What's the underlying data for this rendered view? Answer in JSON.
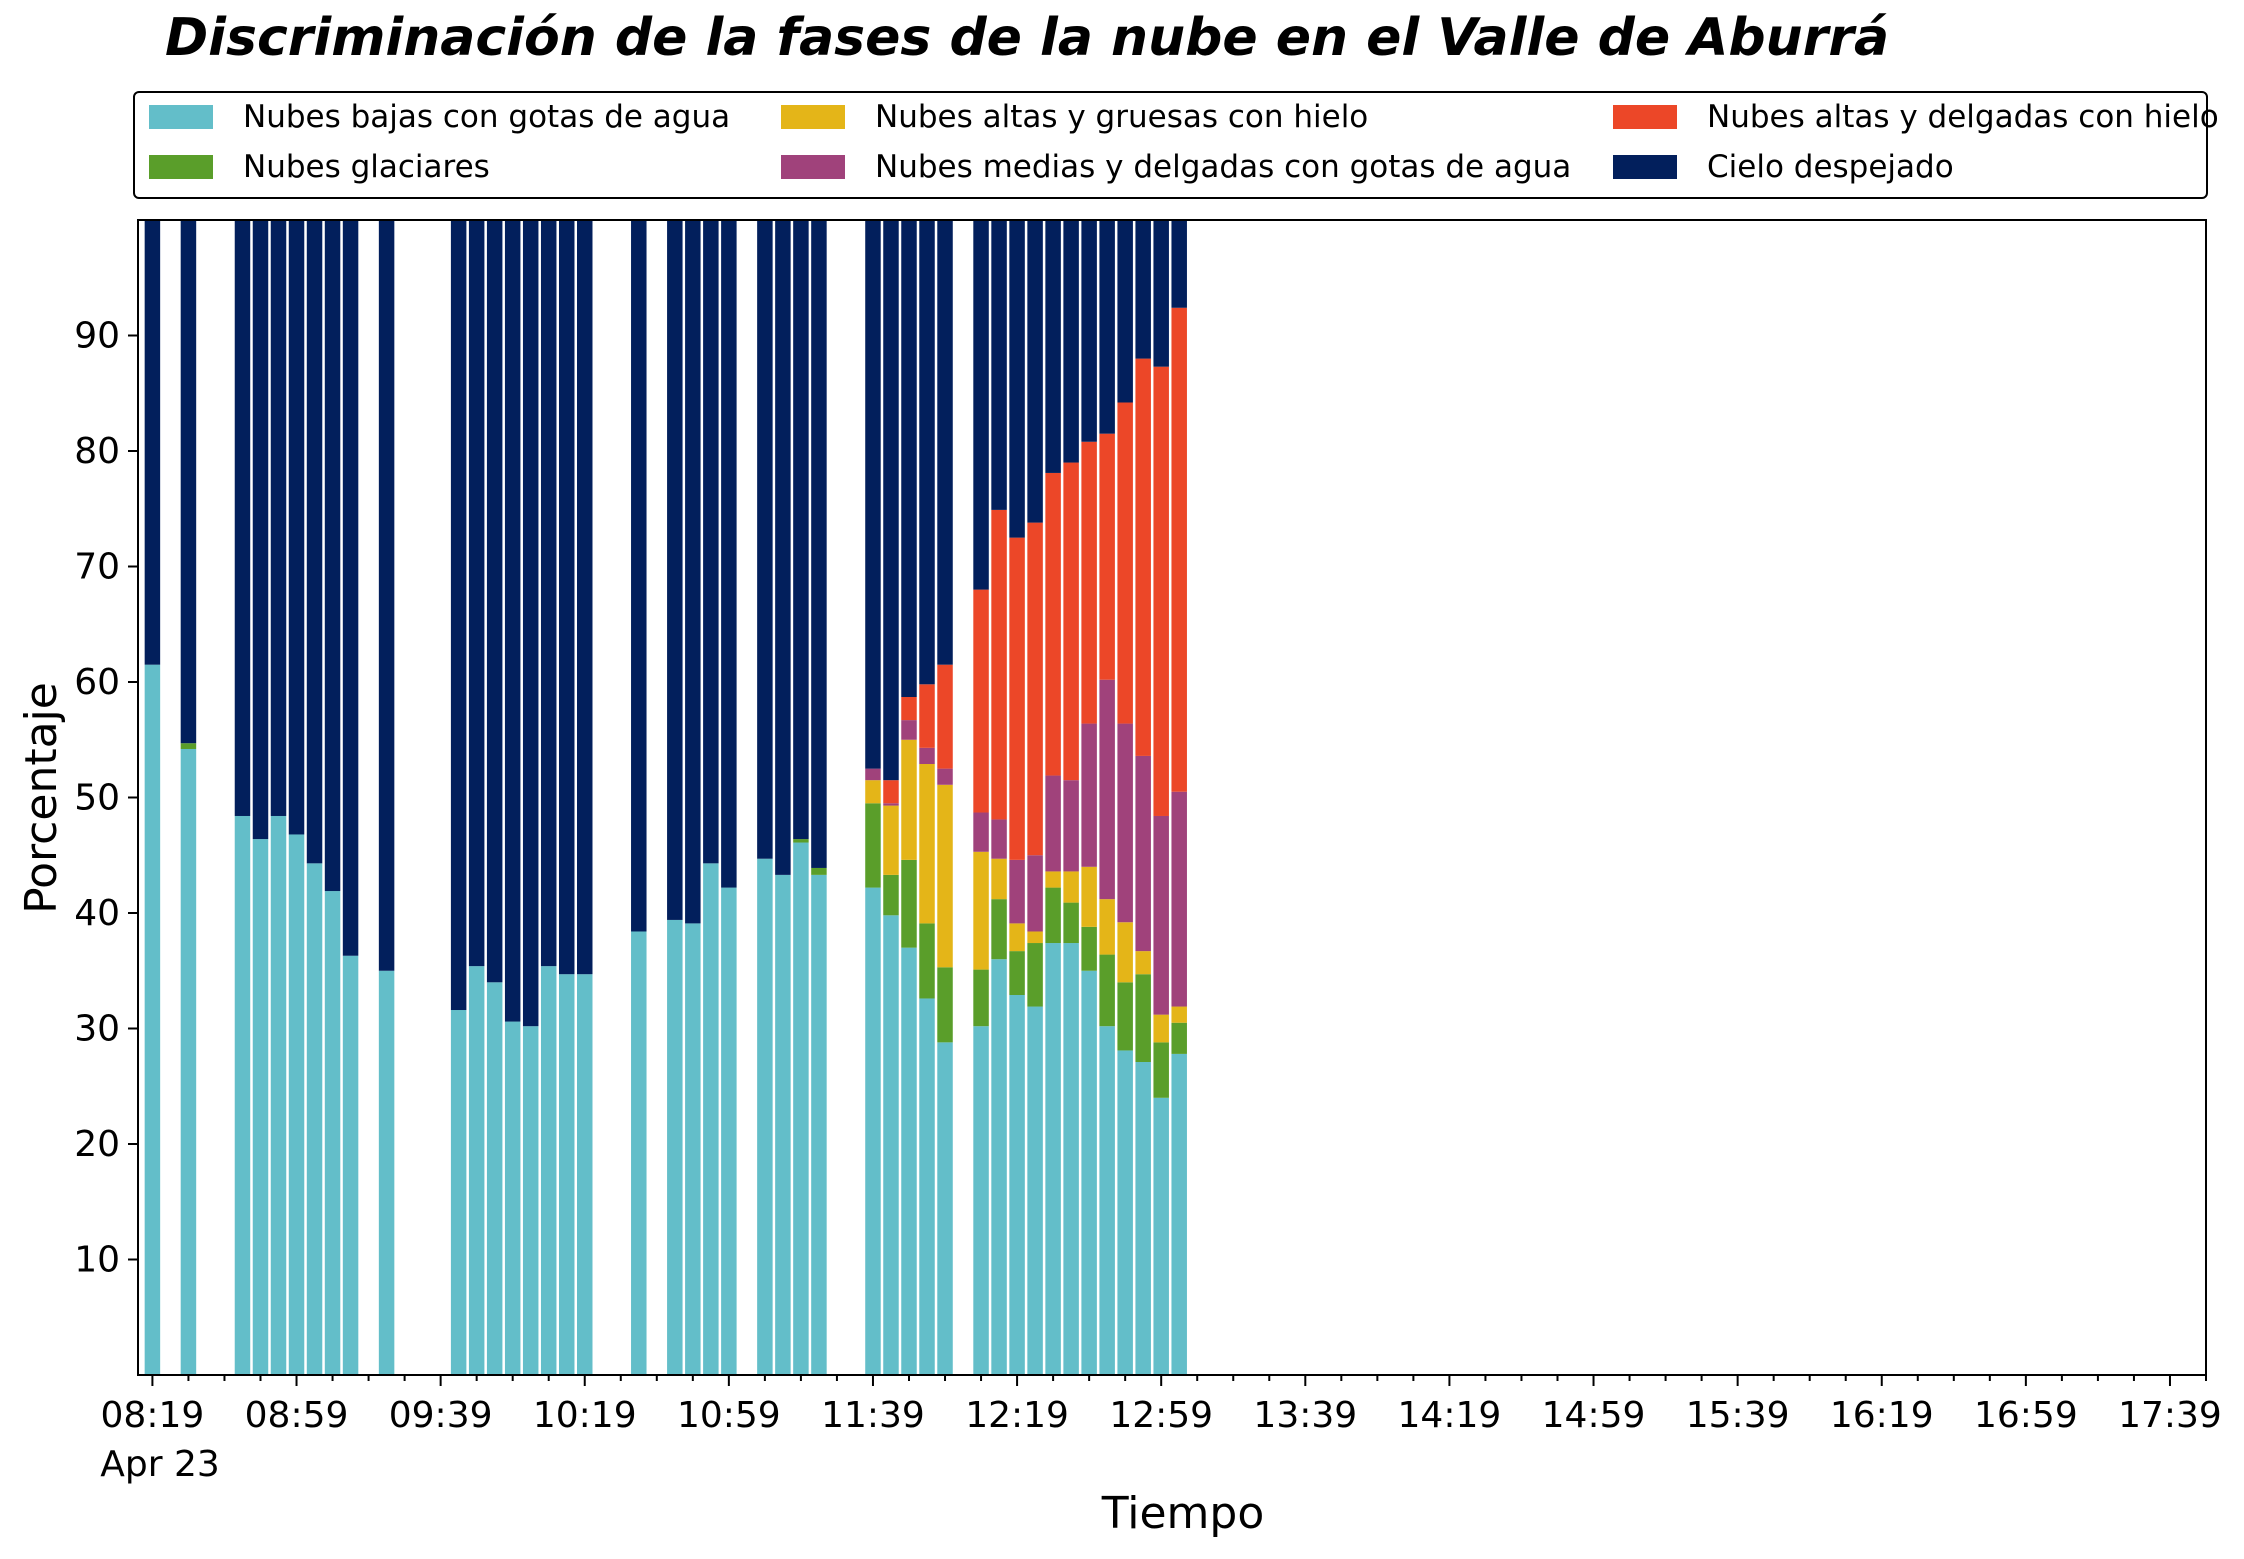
{
  "chart_data": {
    "type": "bar",
    "stacked": true,
    "title": "Discriminación de la fases de la nube en el Valle de Aburrá",
    "xlabel": "Tiempo",
    "ylabel": "Porcentaje",
    "ylim": [
      0,
      100
    ],
    "yticks": [
      10,
      20,
      30,
      40,
      50,
      60,
      70,
      80,
      90
    ],
    "x_date_label": "Apr 23",
    "xlim_minutes": [
      "08:15",
      "17:49"
    ],
    "x_major_ticks": [
      "08:19",
      "08:59",
      "09:39",
      "10:19",
      "10:59",
      "11:39",
      "12:19",
      "12:59",
      "13:39",
      "14:19",
      "14:59",
      "15:39",
      "16:19",
      "16:59",
      "17:39"
    ],
    "x_minor_tick_step_minutes": 10,
    "bar_width_minutes": 4.3,
    "legend_position": "top",
    "legend_columns": 3,
    "grid": false,
    "series": [
      {
        "name": "Nubes bajas con gotas de agua",
        "color": "#63bec9"
      },
      {
        "name": "Nubes glaciares",
        "color": "#5a9e2a"
      },
      {
        "name": "Nubes altas y gruesas con hielo",
        "color": "#e4b518"
      },
      {
        "name": "Nubes medias y delgadas con gotas de agua",
        "color": "#a0427b"
      },
      {
        "name": "Nubes altas y delgadas con hielo",
        "color": "#ec4728"
      },
      {
        "name": "Cielo despejado",
        "color": "#021f5c"
      }
    ],
    "legend_order": [
      0,
      2,
      4,
      1,
      3,
      5
    ],
    "bars": [
      {
        "time": "08:19",
        "values": [
          61.5,
          0,
          0,
          0,
          0,
          38.5
        ]
      },
      {
        "time": "08:29",
        "values": [
          54.2,
          0.5,
          0,
          0,
          0,
          45.3
        ]
      },
      {
        "time": "08:44",
        "values": [
          48.4,
          0,
          0,
          0,
          0,
          51.6
        ]
      },
      {
        "time": "08:49",
        "values": [
          46.4,
          0,
          0,
          0,
          0,
          53.6
        ]
      },
      {
        "time": "08:54",
        "values": [
          48.4,
          0,
          0,
          0,
          0,
          51.6
        ]
      },
      {
        "time": "08:59",
        "values": [
          46.8,
          0,
          0,
          0,
          0,
          53.2
        ]
      },
      {
        "time": "09:04",
        "values": [
          44.3,
          0,
          0,
          0,
          0,
          55.7
        ]
      },
      {
        "time": "09:09",
        "values": [
          41.9,
          0,
          0,
          0,
          0,
          58.1
        ]
      },
      {
        "time": "09:14",
        "values": [
          36.3,
          0,
          0,
          0,
          0,
          63.7
        ]
      },
      {
        "time": "09:24",
        "values": [
          35.0,
          0,
          0,
          0,
          0,
          65.0
        ]
      },
      {
        "time": "09:44",
        "values": [
          31.6,
          0,
          0,
          0,
          0,
          68.4
        ]
      },
      {
        "time": "09:49",
        "values": [
          35.4,
          0,
          0,
          0,
          0,
          64.6
        ]
      },
      {
        "time": "09:54",
        "values": [
          34.0,
          0,
          0,
          0,
          0,
          66.0
        ]
      },
      {
        "time": "09:59",
        "values": [
          30.6,
          0,
          0,
          0,
          0,
          69.4
        ]
      },
      {
        "time": "10:04",
        "values": [
          30.2,
          0,
          0,
          0,
          0,
          69.8
        ]
      },
      {
        "time": "10:09",
        "values": [
          35.4,
          0,
          0,
          0,
          0,
          64.6
        ]
      },
      {
        "time": "10:14",
        "values": [
          34.7,
          0,
          0,
          0,
          0,
          65.3
        ]
      },
      {
        "time": "10:19",
        "values": [
          34.7,
          0,
          0,
          0,
          0,
          65.3
        ]
      },
      {
        "time": "10:34",
        "values": [
          38.4,
          0,
          0,
          0,
          0,
          61.6
        ]
      },
      {
        "time": "10:44",
        "values": [
          39.4,
          0,
          0,
          0,
          0,
          60.6
        ]
      },
      {
        "time": "10:49",
        "values": [
          39.1,
          0,
          0,
          0,
          0,
          60.9
        ]
      },
      {
        "time": "10:54",
        "values": [
          44.3,
          0,
          0,
          0,
          0,
          55.7
        ]
      },
      {
        "time": "10:59",
        "values": [
          42.2,
          0,
          0,
          0,
          0,
          57.8
        ]
      },
      {
        "time": "11:09",
        "values": [
          44.7,
          0,
          0,
          0,
          0,
          55.3
        ]
      },
      {
        "time": "11:14",
        "values": [
          43.3,
          0,
          0,
          0,
          0,
          56.7
        ]
      },
      {
        "time": "11:19",
        "values": [
          46.1,
          0.3,
          0,
          0,
          0,
          53.6
        ]
      },
      {
        "time": "11:24",
        "values": [
          43.3,
          0.6,
          0,
          0,
          0,
          56.1
        ]
      },
      {
        "time": "11:39",
        "values": [
          42.2,
          7.3,
          2.0,
          1.0,
          0,
          47.5
        ]
      },
      {
        "time": "11:44",
        "values": [
          39.8,
          3.5,
          6.0,
          0.2,
          2.0,
          48.5
        ]
      },
      {
        "time": "11:49",
        "values": [
          37.0,
          7.6,
          10.4,
          1.7,
          2.0,
          41.3
        ]
      },
      {
        "time": "11:54",
        "values": [
          32.6,
          6.5,
          13.8,
          1.4,
          5.5,
          40.2
        ]
      },
      {
        "time": "11:59",
        "values": [
          28.8,
          6.5,
          15.8,
          1.4,
          9.0,
          38.5
        ]
      },
      {
        "time": "12:09",
        "values": [
          30.2,
          4.9,
          10.2,
          3.4,
          19.3,
          32.0
        ]
      },
      {
        "time": "12:14",
        "values": [
          36.0,
          5.2,
          3.5,
          3.4,
          26.8,
          25.1
        ]
      },
      {
        "time": "12:19",
        "values": [
          32.9,
          3.8,
          2.4,
          5.5,
          27.9,
          27.5
        ]
      },
      {
        "time": "12:24",
        "values": [
          31.9,
          5.5,
          1.0,
          6.6,
          28.8,
          26.2
        ]
      },
      {
        "time": "12:29",
        "values": [
          37.4,
          4.8,
          1.4,
          8.3,
          26.2,
          21.9
        ]
      },
      {
        "time": "12:34",
        "values": [
          37.4,
          3.5,
          2.7,
          7.9,
          27.5,
          21.0
        ]
      },
      {
        "time": "12:39",
        "values": [
          35.0,
          3.8,
          5.2,
          12.4,
          24.4,
          19.2
        ]
      },
      {
        "time": "12:44",
        "values": [
          30.2,
          6.2,
          4.8,
          19.0,
          21.3,
          18.5
        ]
      },
      {
        "time": "12:49",
        "values": [
          28.1,
          5.9,
          5.2,
          17.2,
          27.8,
          15.8
        ]
      },
      {
        "time": "12:54",
        "values": [
          27.1,
          7.6,
          2.0,
          16.9,
          34.4,
          12.0
        ]
      },
      {
        "time": "12:59",
        "values": [
          24.0,
          4.8,
          2.4,
          17.2,
          38.9,
          12.7
        ]
      },
      {
        "time": "13:04",
        "values": [
          27.8,
          2.7,
          1.4,
          18.6,
          41.9,
          7.6
        ]
      }
    ]
  }
}
